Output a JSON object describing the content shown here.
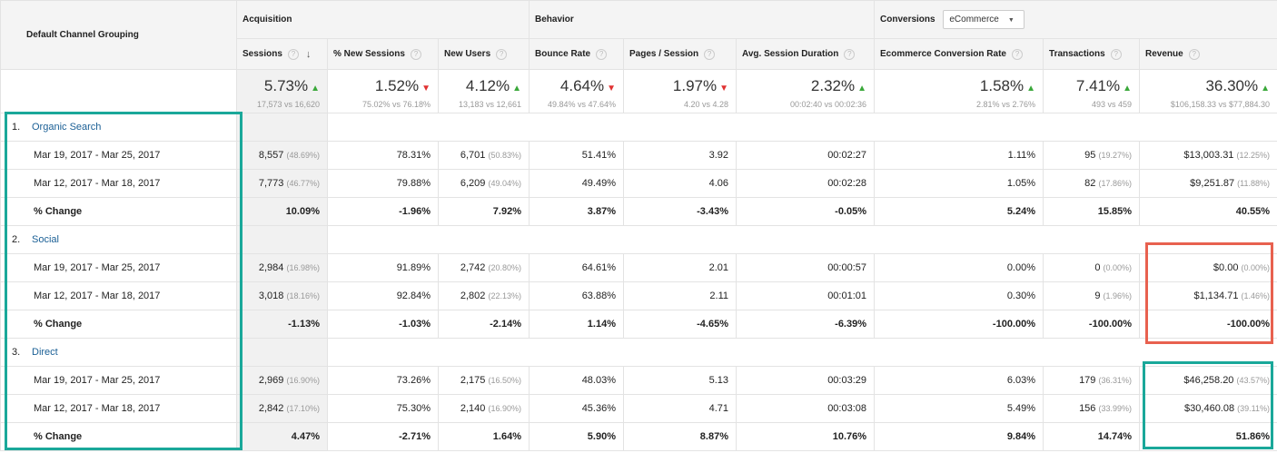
{
  "header": {
    "dimension_label": "Default Channel Grouping",
    "group_acquisition": "Acquisition",
    "group_behavior": "Behavior",
    "group_conversions": "Conversions",
    "conversions_select": "eCommerce",
    "columns": [
      "Sessions",
      "% New Sessions",
      "New Users",
      "Bounce Rate",
      "Pages / Session",
      "Avg. Session Duration",
      "Ecommerce Conversion Rate",
      "Transactions",
      "Revenue"
    ]
  },
  "totals": [
    {
      "value": "5.73%",
      "trend": "up",
      "compare": "17,573 vs 16,620"
    },
    {
      "value": "1.52%",
      "trend": "down",
      "compare": "75.02% vs 76.18%"
    },
    {
      "value": "4.12%",
      "trend": "up",
      "compare": "13,183 vs 12,661"
    },
    {
      "value": "4.64%",
      "trend": "down",
      "compare": "49.84% vs 47.64%"
    },
    {
      "value": "1.97%",
      "trend": "down",
      "compare": "4.20 vs 4.28"
    },
    {
      "value": "2.32%",
      "trend": "up",
      "compare": "00:02:40 vs 00:02:36"
    },
    {
      "value": "1.58%",
      "trend": "up",
      "compare": "2.81% vs 2.76%"
    },
    {
      "value": "7.41%",
      "trend": "up",
      "compare": "493 vs 459"
    },
    {
      "value": "36.30%",
      "trend": "up",
      "compare": "$106,158.33 vs $77,884.30"
    }
  ],
  "channels": [
    {
      "index": "1.",
      "name": "Organic Search",
      "rows": [
        {
          "label": "Mar 19, 2017 - Mar 25, 2017",
          "cells": [
            [
              "8,557",
              "(48.69%)"
            ],
            [
              "78.31%",
              ""
            ],
            [
              "6,701",
              "(50.83%)"
            ],
            [
              "51.41%",
              ""
            ],
            [
              "3.92",
              ""
            ],
            [
              "00:02:27",
              ""
            ],
            [
              "1.11%",
              ""
            ],
            [
              "95",
              "(19.27%)"
            ],
            [
              "$13,003.31",
              "(12.25%)"
            ]
          ]
        },
        {
          "label": "Mar 12, 2017 - Mar 18, 2017",
          "cells": [
            [
              "7,773",
              "(46.77%)"
            ],
            [
              "79.88%",
              ""
            ],
            [
              "6,209",
              "(49.04%)"
            ],
            [
              "49.49%",
              ""
            ],
            [
              "4.06",
              ""
            ],
            [
              "00:02:28",
              ""
            ],
            [
              "1.05%",
              ""
            ],
            [
              "82",
              "(17.86%)"
            ],
            [
              "$9,251.87",
              "(11.88%)"
            ]
          ]
        },
        {
          "label": "% Change",
          "cells": [
            [
              "10.09%",
              ""
            ],
            [
              "-1.96%",
              ""
            ],
            [
              "7.92%",
              ""
            ],
            [
              "3.87%",
              ""
            ],
            [
              "-3.43%",
              ""
            ],
            [
              "-0.05%",
              ""
            ],
            [
              "5.24%",
              ""
            ],
            [
              "15.85%",
              ""
            ],
            [
              "40.55%",
              ""
            ]
          ]
        }
      ]
    },
    {
      "index": "2.",
      "name": "Social",
      "rows": [
        {
          "label": "Mar 19, 2017 - Mar 25, 2017",
          "cells": [
            [
              "2,984",
              "(16.98%)"
            ],
            [
              "91.89%",
              ""
            ],
            [
              "2,742",
              "(20.80%)"
            ],
            [
              "64.61%",
              ""
            ],
            [
              "2.01",
              ""
            ],
            [
              "00:00:57",
              ""
            ],
            [
              "0.00%",
              ""
            ],
            [
              "0",
              "(0.00%)"
            ],
            [
              "$0.00",
              "(0.00%)"
            ]
          ]
        },
        {
          "label": "Mar 12, 2017 - Mar 18, 2017",
          "cells": [
            [
              "3,018",
              "(18.16%)"
            ],
            [
              "92.84%",
              ""
            ],
            [
              "2,802",
              "(22.13%)"
            ],
            [
              "63.88%",
              ""
            ],
            [
              "2.11",
              ""
            ],
            [
              "00:01:01",
              ""
            ],
            [
              "0.30%",
              ""
            ],
            [
              "9",
              "(1.96%)"
            ],
            [
              "$1,134.71",
              "(1.46%)"
            ]
          ]
        },
        {
          "label": "% Change",
          "cells": [
            [
              "-1.13%",
              ""
            ],
            [
              "-1.03%",
              ""
            ],
            [
              "-2.14%",
              ""
            ],
            [
              "1.14%",
              ""
            ],
            [
              "-4.65%",
              ""
            ],
            [
              "-6.39%",
              ""
            ],
            [
              "-100.00%",
              ""
            ],
            [
              "-100.00%",
              ""
            ],
            [
              "-100.00%",
              ""
            ]
          ]
        }
      ]
    },
    {
      "index": "3.",
      "name": "Direct",
      "rows": [
        {
          "label": "Mar 19, 2017 - Mar 25, 2017",
          "cells": [
            [
              "2,969",
              "(16.90%)"
            ],
            [
              "73.26%",
              ""
            ],
            [
              "2,175",
              "(16.50%)"
            ],
            [
              "48.03%",
              ""
            ],
            [
              "5.13",
              ""
            ],
            [
              "00:03:29",
              ""
            ],
            [
              "6.03%",
              ""
            ],
            [
              "179",
              "(36.31%)"
            ],
            [
              "$46,258.20",
              "(43.57%)"
            ]
          ]
        },
        {
          "label": "Mar 12, 2017 - Mar 18, 2017",
          "cells": [
            [
              "2,842",
              "(17.10%)"
            ],
            [
              "75.30%",
              ""
            ],
            [
              "2,140",
              "(16.90%)"
            ],
            [
              "45.36%",
              ""
            ],
            [
              "4.71",
              ""
            ],
            [
              "00:03:08",
              ""
            ],
            [
              "5.49%",
              ""
            ],
            [
              "156",
              "(33.99%)"
            ],
            [
              "$30,460.08",
              "(39.11%)"
            ]
          ]
        },
        {
          "label": "% Change",
          "cells": [
            [
              "4.47%",
              ""
            ],
            [
              "-2.71%",
              ""
            ],
            [
              "1.64%",
              ""
            ],
            [
              "5.90%",
              ""
            ],
            [
              "8.87%",
              ""
            ],
            [
              "10.76%",
              ""
            ],
            [
              "9.84%",
              ""
            ],
            [
              "14.74%",
              ""
            ],
            [
              "51.86%",
              ""
            ]
          ]
        }
      ]
    }
  ],
  "colors": {
    "highlight_teal": "#1aa89a",
    "highlight_red": "#e8614f",
    "link": "#1a5f95",
    "up": "#3aa83a",
    "down": "#e03131"
  }
}
